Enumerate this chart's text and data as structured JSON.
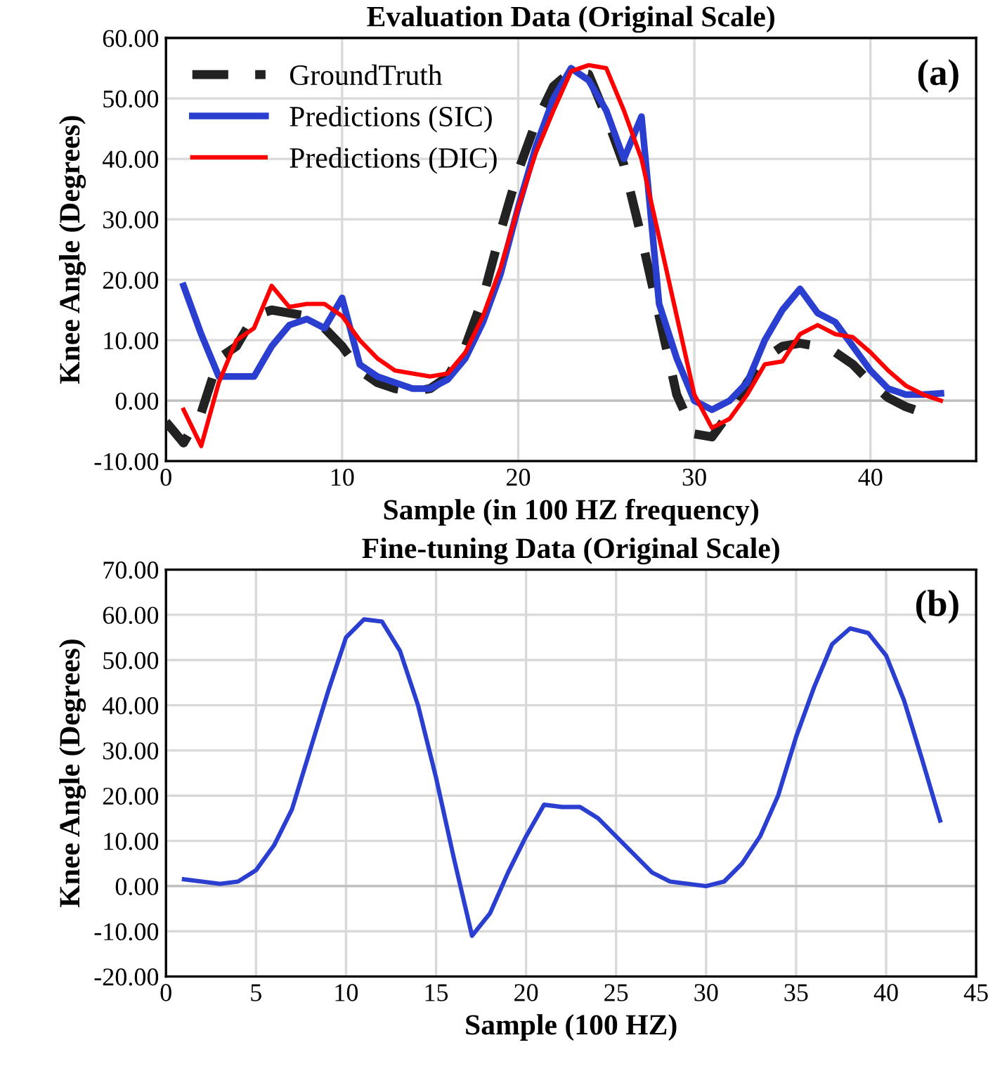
{
  "chart_data": [
    {
      "type": "line",
      "title": "Evaluation Data (Original Scale)",
      "xlabel": "Sample (in 100 HZ frequency)",
      "ylabel": "Knee Angle (Degrees)",
      "annotations": [
        "(a)"
      ],
      "xlim": [
        0,
        46
      ],
      "xticks": [
        0,
        10,
        20,
        30,
        40
      ],
      "ylim": [
        -10,
        60
      ],
      "yticks": [
        {
          "value": -10,
          "label": "-10.00"
        },
        {
          "value": 0,
          "label": "0.00"
        },
        {
          "value": 10,
          "label": "10.00"
        },
        {
          "value": 20,
          "label": "20.00"
        },
        {
          "value": 30,
          "label": "30.00"
        },
        {
          "value": 40,
          "label": "40.00"
        },
        {
          "value": 50,
          "label": "50.00"
        },
        {
          "value": 60,
          "label": "60.00"
        }
      ],
      "grid": true,
      "legend": "top left",
      "series": [
        {
          "name": "GroundTruth",
          "color": "#222222",
          "line_style": "dashed",
          "x": [
            0,
            1,
            2,
            3,
            4,
            5,
            6,
            7,
            8,
            9,
            10,
            11,
            12,
            13,
            14,
            15,
            16,
            17,
            18,
            19,
            20,
            21,
            22,
            23,
            24,
            25,
            26,
            27,
            28,
            29,
            30,
            31,
            32,
            33,
            34,
            35,
            36,
            37,
            38,
            39,
            40,
            41,
            42,
            43
          ],
          "values": [
            -3.5,
            -7,
            -2,
            7,
            9,
            14,
            15,
            14.5,
            14,
            12,
            9,
            5,
            3,
            2,
            1.5,
            2,
            4,
            9,
            17,
            28,
            38,
            46,
            52,
            54.5,
            54,
            47,
            39,
            27,
            14,
            1,
            -5.5,
            -6,
            -2,
            3,
            7,
            9,
            9.5,
            9,
            8,
            6,
            3,
            0.5,
            -1,
            -2
          ]
        },
        {
          "name": "Predictions (SIC)",
          "color": "#2a3fd0",
          "line_style": "solid",
          "x": [
            1,
            2,
            3,
            4,
            5,
            6,
            7,
            8,
            9,
            10,
            11,
            12,
            13,
            14,
            15,
            16,
            17,
            18,
            19,
            20,
            21,
            22,
            23,
            24,
            25,
            26,
            27,
            28,
            29,
            30,
            31,
            32,
            33,
            34,
            35,
            36,
            37,
            38,
            39,
            40,
            41,
            42,
            43,
            44
          ],
          "values": [
            19,
            11,
            4,
            4,
            4,
            9,
            12.5,
            13.5,
            12,
            17,
            6,
            4,
            3,
            2,
            2,
            3.5,
            7,
            13,
            21,
            32,
            42,
            50,
            55,
            53,
            48,
            40,
            47,
            16,
            7,
            0,
            -1.5,
            0,
            3,
            10,
            15,
            18.5,
            14.5,
            13,
            9,
            5,
            2,
            1,
            1,
            1.2
          ]
        },
        {
          "name": "Predictions (DIC)",
          "color": "#ff0000",
          "line_style": "solid",
          "x": [
            1,
            2,
            3,
            4,
            5,
            6,
            7,
            8,
            9,
            10,
            11,
            12,
            13,
            14,
            15,
            16,
            17,
            18,
            19,
            20,
            21,
            22,
            23,
            24,
            25,
            26,
            27,
            28,
            29,
            30,
            31,
            32,
            33,
            34,
            35,
            36,
            37,
            38,
            39,
            40,
            41,
            42,
            43,
            44
          ],
          "values": [
            -1.5,
            -7.5,
            3,
            10,
            12,
            19,
            15.5,
            16,
            16,
            14,
            10,
            7,
            5,
            4.5,
            4,
            4.5,
            8,
            14,
            22,
            32,
            41,
            48,
            54.5,
            55.5,
            55,
            48,
            40,
            27,
            14,
            1,
            -4.5,
            -3,
            1,
            6,
            6.5,
            11,
            12.5,
            11,
            10.5,
            8,
            5,
            2.5,
            1,
            0
          ]
        }
      ]
    },
    {
      "type": "line",
      "title": "Fine-tuning Data (Original Scale)",
      "xlabel": "Sample (100 HZ)",
      "ylabel": "Knee Angle (Degrees)",
      "annotations": [
        "(b)"
      ],
      "xlim": [
        0,
        45
      ],
      "xticks": [
        0,
        5,
        10,
        15,
        20,
        25,
        30,
        35,
        40,
        45
      ],
      "ylim": [
        -20,
        70
      ],
      "yticks": [
        {
          "value": -20,
          "label": "-20.00"
        },
        {
          "value": -10,
          "label": "-10.00"
        },
        {
          "value": 0,
          "label": "0.00"
        },
        {
          "value": 10,
          "label": "10.00"
        },
        {
          "value": 20,
          "label": "20.00"
        },
        {
          "value": 30,
          "label": "30.00"
        },
        {
          "value": 40,
          "label": "40.00"
        },
        {
          "value": 50,
          "label": "50.00"
        },
        {
          "value": 60,
          "label": "60.00"
        },
        {
          "value": 70,
          "label": "70.00"
        }
      ],
      "grid": true,
      "series": [
        {
          "color": "#2a3fd0",
          "line_style": "solid",
          "x": [
            1,
            2,
            3,
            4,
            5,
            6,
            7,
            8,
            9,
            10,
            11,
            12,
            13,
            14,
            15,
            16,
            17,
            18,
            19,
            20,
            21,
            22,
            23,
            24,
            25,
            26,
            27,
            28,
            29,
            30,
            31,
            32,
            33,
            34,
            35,
            36,
            37,
            38,
            39,
            40,
            41,
            42,
            43
          ],
          "values": [
            1.5,
            1,
            0.5,
            1,
            3.5,
            9,
            17,
            30,
            43,
            55,
            59,
            58.5,
            52,
            40,
            24,
            6,
            -11,
            -6,
            3,
            11,
            18,
            17.5,
            17.5,
            15,
            11,
            7,
            3,
            1,
            0.5,
            0,
            1,
            5,
            11,
            20,
            33,
            44,
            53.5,
            57,
            56,
            51,
            41,
            28,
            14.5
          ]
        }
      ]
    }
  ]
}
